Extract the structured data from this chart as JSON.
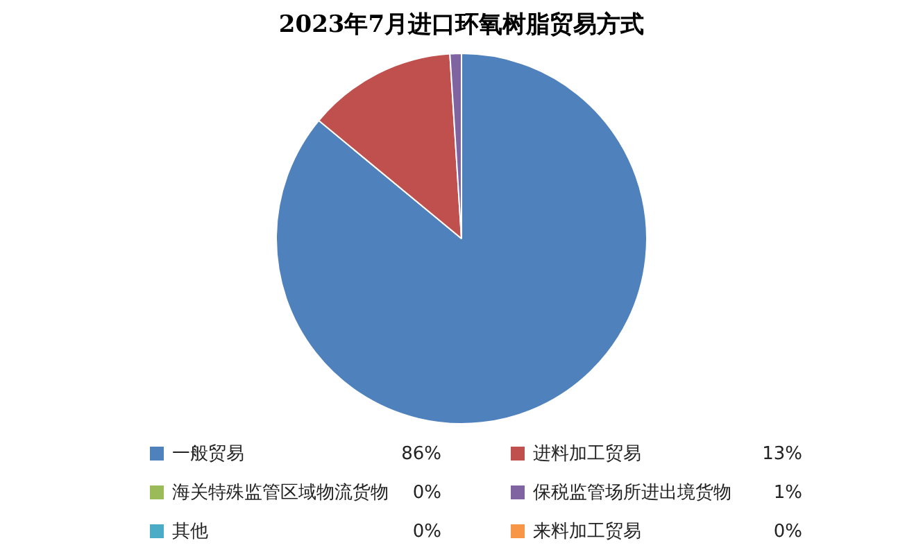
{
  "chart_data": {
    "type": "pie",
    "title": "2023年7月进口环氧树脂贸易方式",
    "categories": [
      "一般贸易",
      "进料加工贸易",
      "海关特殊监管区域物流货物",
      "保税监管场所进出境货物",
      "其他",
      "来料加工贸易"
    ],
    "values": [
      86,
      13,
      0,
      1,
      0,
      0
    ],
    "value_labels": [
      "86%",
      "13%",
      "0%",
      "1%",
      "0%",
      "0%"
    ],
    "colors": [
      "#4f81bd",
      "#c0504d",
      "#9bbb59",
      "#8064a2",
      "#4bacc6",
      "#f79646"
    ],
    "legend": "bottom"
  }
}
